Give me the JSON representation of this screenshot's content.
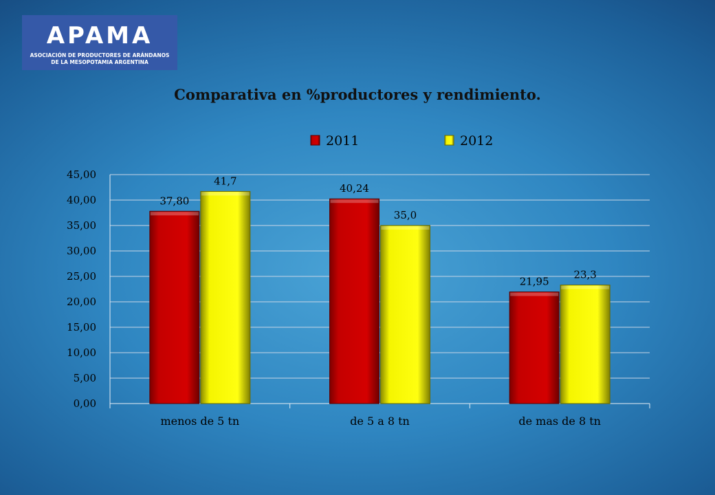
{
  "logo": {
    "word": "APAMA",
    "line1": "ASOCIACIÓN DE PRODUCTORES DE ARÁNDANOS",
    "line2": "DE LA MESOPOTAMIA ARGENTINA"
  },
  "chart_data": {
    "type": "bar",
    "title": "Comparativa en %productores y rendimiento.",
    "categories": [
      "menos de 5 tn",
      "de 5 a 8 tn",
      "de mas de 8 tn"
    ],
    "series": [
      {
        "name": "2011",
        "values": [
          37.8,
          40.24,
          21.95
        ],
        "labels": [
          "37,80",
          "40,24",
          "21,95"
        ],
        "color": "#cc0000"
      },
      {
        "name": "2012",
        "values": [
          41.7,
          35.0,
          23.3
        ],
        "labels": [
          "41,7",
          "35,0",
          "23,3"
        ],
        "color": "#ffff00"
      }
    ],
    "ylim": [
      0,
      45
    ],
    "yticks": [
      "0,00",
      "5,00",
      "10,00",
      "15,00",
      "20,00",
      "25,00",
      "30,00",
      "35,00",
      "40,00",
      "45,00"
    ],
    "grid": true,
    "legend": "top-center",
    "xlabel": "",
    "ylabel": ""
  }
}
